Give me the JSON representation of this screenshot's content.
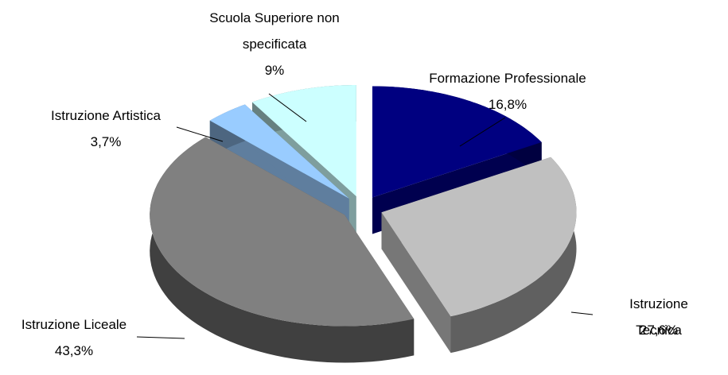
{
  "chart_data": {
    "type": "pie3d",
    "categories": [
      "Formazione Professionale",
      "Istruzione Tecnica",
      "Istruzione Liceale",
      "Istruzione Artistica",
      "Scuola Superiore non specificata"
    ],
    "values": [
      16.8,
      27.6,
      43.3,
      3.7,
      9
    ],
    "value_labels": [
      "16,8%",
      "27,6%",
      "43,3%",
      "3,7%",
      "9%"
    ],
    "colors": [
      "#000080",
      "#c0c0c0",
      "#808080",
      "#99ccff",
      "#ccffff"
    ]
  }
}
